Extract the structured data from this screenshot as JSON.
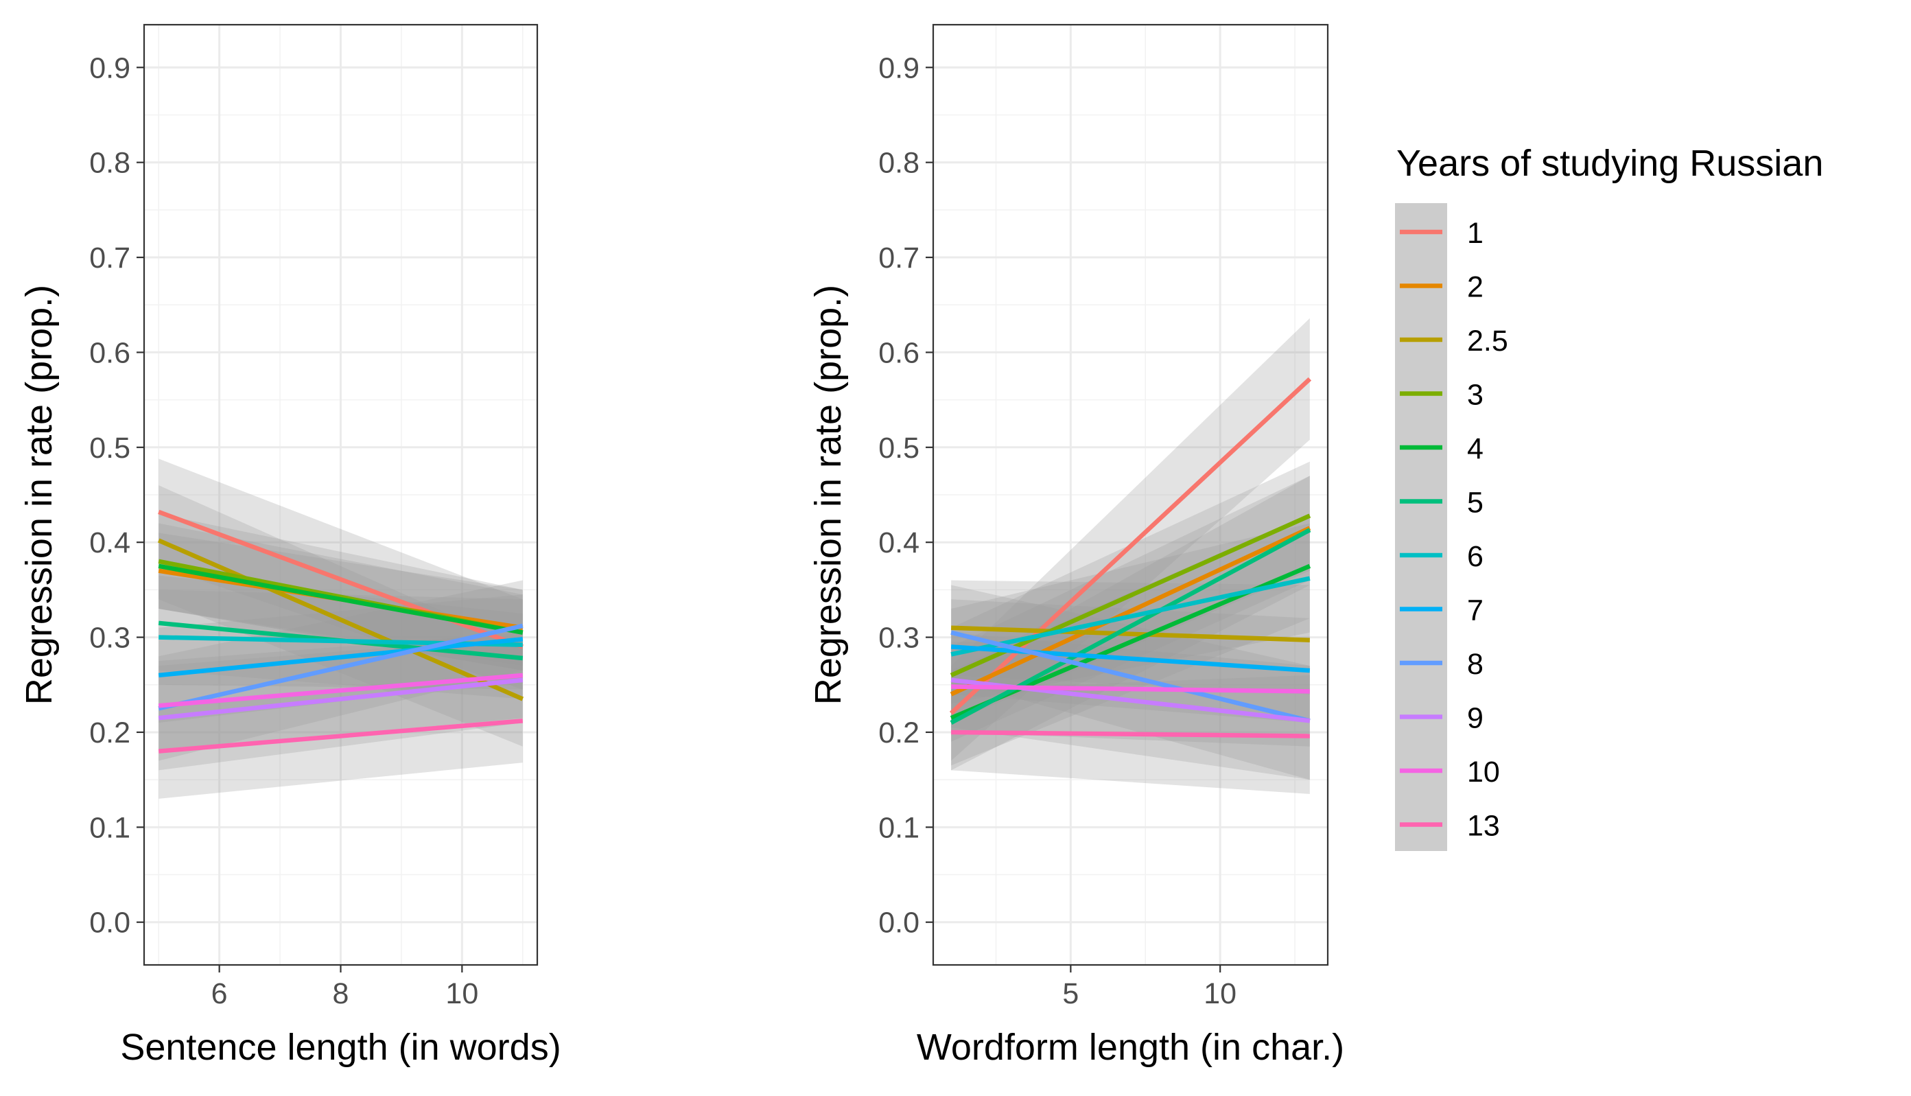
{
  "legend": {
    "title": "Years of studying Russian",
    "entries": [
      {
        "label": "1",
        "color": "#F8766D"
      },
      {
        "label": "2",
        "color": "#E58700"
      },
      {
        "label": "2.5",
        "color": "#B79F00"
      },
      {
        "label": "3",
        "color": "#7CAE00"
      },
      {
        "label": "4",
        "color": "#00BA38"
      },
      {
        "label": "5",
        "color": "#00BF7D"
      },
      {
        "label": "6",
        "color": "#00BFC4"
      },
      {
        "label": "7",
        "color": "#00B0F6"
      },
      {
        "label": "8",
        "color": "#619CFF"
      },
      {
        "label": "9",
        "color": "#C77CFF"
      },
      {
        "label": "10",
        "color": "#F564E3"
      },
      {
        "label": "13",
        "color": "#FF64B0"
      }
    ]
  },
  "chart_data": [
    {
      "type": "line",
      "title": "",
      "xlabel": "Sentence length (in words)",
      "ylabel": "Regression in rate (prop.)",
      "xlim": [
        4.76,
        11.24
      ],
      "ylim": [
        -0.045,
        0.945
      ],
      "xticks": [
        6,
        8,
        10
      ],
      "xtick_labels": [
        "6",
        "8",
        "10"
      ],
      "yticks": [
        0.0,
        0.1,
        0.2,
        0.3,
        0.4,
        0.5,
        0.6,
        0.7,
        0.8,
        0.9
      ],
      "ytick_labels": [
        "0.0",
        "0.1",
        "0.2",
        "0.3",
        "0.4",
        "0.5",
        "0.6",
        "0.7",
        "0.8",
        "0.9"
      ],
      "grid": true,
      "series": [
        {
          "name": "1",
          "x": [
            5,
            11
          ],
          "y": [
            0.432,
            0.29
          ],
          "ci_low": [
            0.375,
            0.245
          ],
          "ci_high": [
            0.488,
            0.34
          ]
        },
        {
          "name": "2",
          "x": [
            5,
            11
          ],
          "y": [
            0.37,
            0.31
          ],
          "ci_low": [
            0.33,
            0.27
          ],
          "ci_high": [
            0.41,
            0.35
          ]
        },
        {
          "name": "2.5",
          "x": [
            5,
            11
          ],
          "y": [
            0.402,
            0.235
          ],
          "ci_low": [
            0.34,
            0.185
          ],
          "ci_high": [
            0.46,
            0.29
          ]
        },
        {
          "name": "3",
          "x": [
            5,
            11
          ],
          "y": [
            0.38,
            0.305
          ],
          "ci_low": [
            0.33,
            0.265
          ],
          "ci_high": [
            0.43,
            0.35
          ]
        },
        {
          "name": "4",
          "x": [
            5,
            11
          ],
          "y": [
            0.375,
            0.305
          ],
          "ci_low": [
            0.33,
            0.265
          ],
          "ci_high": [
            0.42,
            0.345
          ]
        },
        {
          "name": "5",
          "x": [
            5,
            11
          ],
          "y": [
            0.315,
            0.278
          ],
          "ci_low": [
            0.265,
            0.235
          ],
          "ci_high": [
            0.365,
            0.325
          ]
        },
        {
          "name": "6",
          "x": [
            5,
            11
          ],
          "y": [
            0.3,
            0.292
          ],
          "ci_low": [
            0.25,
            0.245
          ],
          "ci_high": [
            0.35,
            0.34
          ]
        },
        {
          "name": "7",
          "x": [
            5,
            11
          ],
          "y": [
            0.26,
            0.298
          ],
          "ci_low": [
            0.21,
            0.255
          ],
          "ci_high": [
            0.31,
            0.345
          ]
        },
        {
          "name": "8",
          "x": [
            5,
            11
          ],
          "y": [
            0.225,
            0.312
          ],
          "ci_low": [
            0.17,
            0.265
          ],
          "ci_high": [
            0.28,
            0.36
          ]
        },
        {
          "name": "9",
          "x": [
            5,
            11
          ],
          "y": [
            0.215,
            0.255
          ],
          "ci_low": [
            0.16,
            0.21
          ],
          "ci_high": [
            0.27,
            0.3
          ]
        },
        {
          "name": "10",
          "x": [
            5,
            11
          ],
          "y": [
            0.228,
            0.26
          ],
          "ci_low": [
            0.18,
            0.215
          ],
          "ci_high": [
            0.275,
            0.305
          ]
        },
        {
          "name": "13",
          "x": [
            5,
            11
          ],
          "y": [
            0.18,
            0.212
          ],
          "ci_low": [
            0.13,
            0.168
          ],
          "ci_high": [
            0.23,
            0.255
          ]
        }
      ]
    },
    {
      "type": "line",
      "title": "",
      "xlabel": "Wordform length (in char.)",
      "ylabel": "Regression in rate (prop.)",
      "xlim": [
        0.4,
        13.6
      ],
      "ylim": [
        -0.045,
        0.945
      ],
      "xticks": [
        5,
        10
      ],
      "xtick_labels": [
        "5",
        "10"
      ],
      "yticks": [
        0.0,
        0.1,
        0.2,
        0.3,
        0.4,
        0.5,
        0.6,
        0.7,
        0.8,
        0.9
      ],
      "ytick_labels": [
        "0.0",
        "0.1",
        "0.2",
        "0.3",
        "0.4",
        "0.5",
        "0.6",
        "0.7",
        "0.8",
        "0.9"
      ],
      "grid": true,
      "series": [
        {
          "name": "1",
          "x": [
            1,
            13
          ],
          "y": [
            0.22,
            0.572
          ],
          "ci_low": [
            0.17,
            0.508
          ],
          "ci_high": [
            0.27,
            0.636
          ]
        },
        {
          "name": "2",
          "x": [
            1,
            13
          ],
          "y": [
            0.24,
            0.415
          ],
          "ci_low": [
            0.19,
            0.36
          ],
          "ci_high": [
            0.29,
            0.47
          ]
        },
        {
          "name": "2.5",
          "x": [
            1,
            13
          ],
          "y": [
            0.31,
            0.297
          ],
          "ci_low": [
            0.26,
            0.24
          ],
          "ci_high": [
            0.36,
            0.355
          ]
        },
        {
          "name": "3",
          "x": [
            1,
            13
          ],
          "y": [
            0.26,
            0.428
          ],
          "ci_low": [
            0.21,
            0.37
          ],
          "ci_high": [
            0.31,
            0.485
          ]
        },
        {
          "name": "4",
          "x": [
            1,
            13
          ],
          "y": [
            0.215,
            0.375
          ],
          "ci_low": [
            0.165,
            0.32
          ],
          "ci_high": [
            0.265,
            0.43
          ]
        },
        {
          "name": "5",
          "x": [
            1,
            13
          ],
          "y": [
            0.21,
            0.413
          ],
          "ci_low": [
            0.16,
            0.355
          ],
          "ci_high": [
            0.26,
            0.47
          ]
        },
        {
          "name": "6",
          "x": [
            1,
            13
          ],
          "y": [
            0.282,
            0.362
          ],
          "ci_low": [
            0.23,
            0.305
          ],
          "ci_high": [
            0.33,
            0.42
          ]
        },
        {
          "name": "7",
          "x": [
            1,
            13
          ],
          "y": [
            0.29,
            0.265
          ],
          "ci_low": [
            0.24,
            0.21
          ],
          "ci_high": [
            0.34,
            0.32
          ]
        },
        {
          "name": "8",
          "x": [
            1,
            13
          ],
          "y": [
            0.305,
            0.212
          ],
          "ci_low": [
            0.255,
            0.15
          ],
          "ci_high": [
            0.355,
            0.27
          ]
        },
        {
          "name": "9",
          "x": [
            1,
            13
          ],
          "y": [
            0.255,
            0.212
          ],
          "ci_low": [
            0.205,
            0.15
          ],
          "ci_high": [
            0.305,
            0.27
          ]
        },
        {
          "name": "10",
          "x": [
            1,
            13
          ],
          "y": [
            0.248,
            0.243
          ],
          "ci_low": [
            0.2,
            0.185
          ],
          "ci_high": [
            0.295,
            0.3
          ]
        },
        {
          "name": "13",
          "x": [
            1,
            13
          ],
          "y": [
            0.2,
            0.196
          ],
          "ci_low": [
            0.16,
            0.135
          ],
          "ci_high": [
            0.245,
            0.26
          ]
        }
      ]
    }
  ]
}
